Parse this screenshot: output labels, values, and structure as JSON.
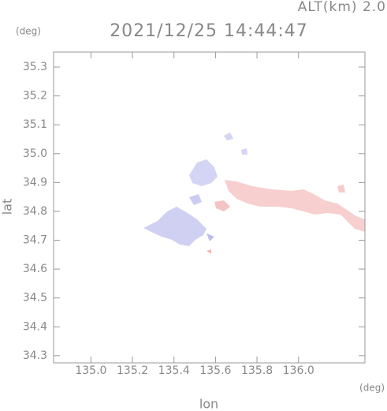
{
  "chart_data": {
    "type": "map",
    "title": "2021/12/25 14:44:47",
    "subtitle": "ALT(km) 2.0",
    "xlabel": "lon",
    "ylabel": "lat",
    "xunit": "(deg)",
    "yunit": "(deg)",
    "xlim": [
      134.82,
      136.32
    ],
    "ylim": [
      34.275,
      35.352
    ],
    "xticks": [
      {
        "value": 135.0,
        "label": "135.0"
      },
      135.2,
      135.4,
      135.6,
      135.8,
      {
        "value": 136.0,
        "label": "136.0"
      }
    ],
    "yticks": [
      34.3,
      34.4,
      34.5,
      34.6,
      34.7,
      34.8,
      34.9,
      {
        "value": 35.0,
        "label": "35.0"
      },
      35.1,
      35.2,
      35.3
    ]
  }
}
